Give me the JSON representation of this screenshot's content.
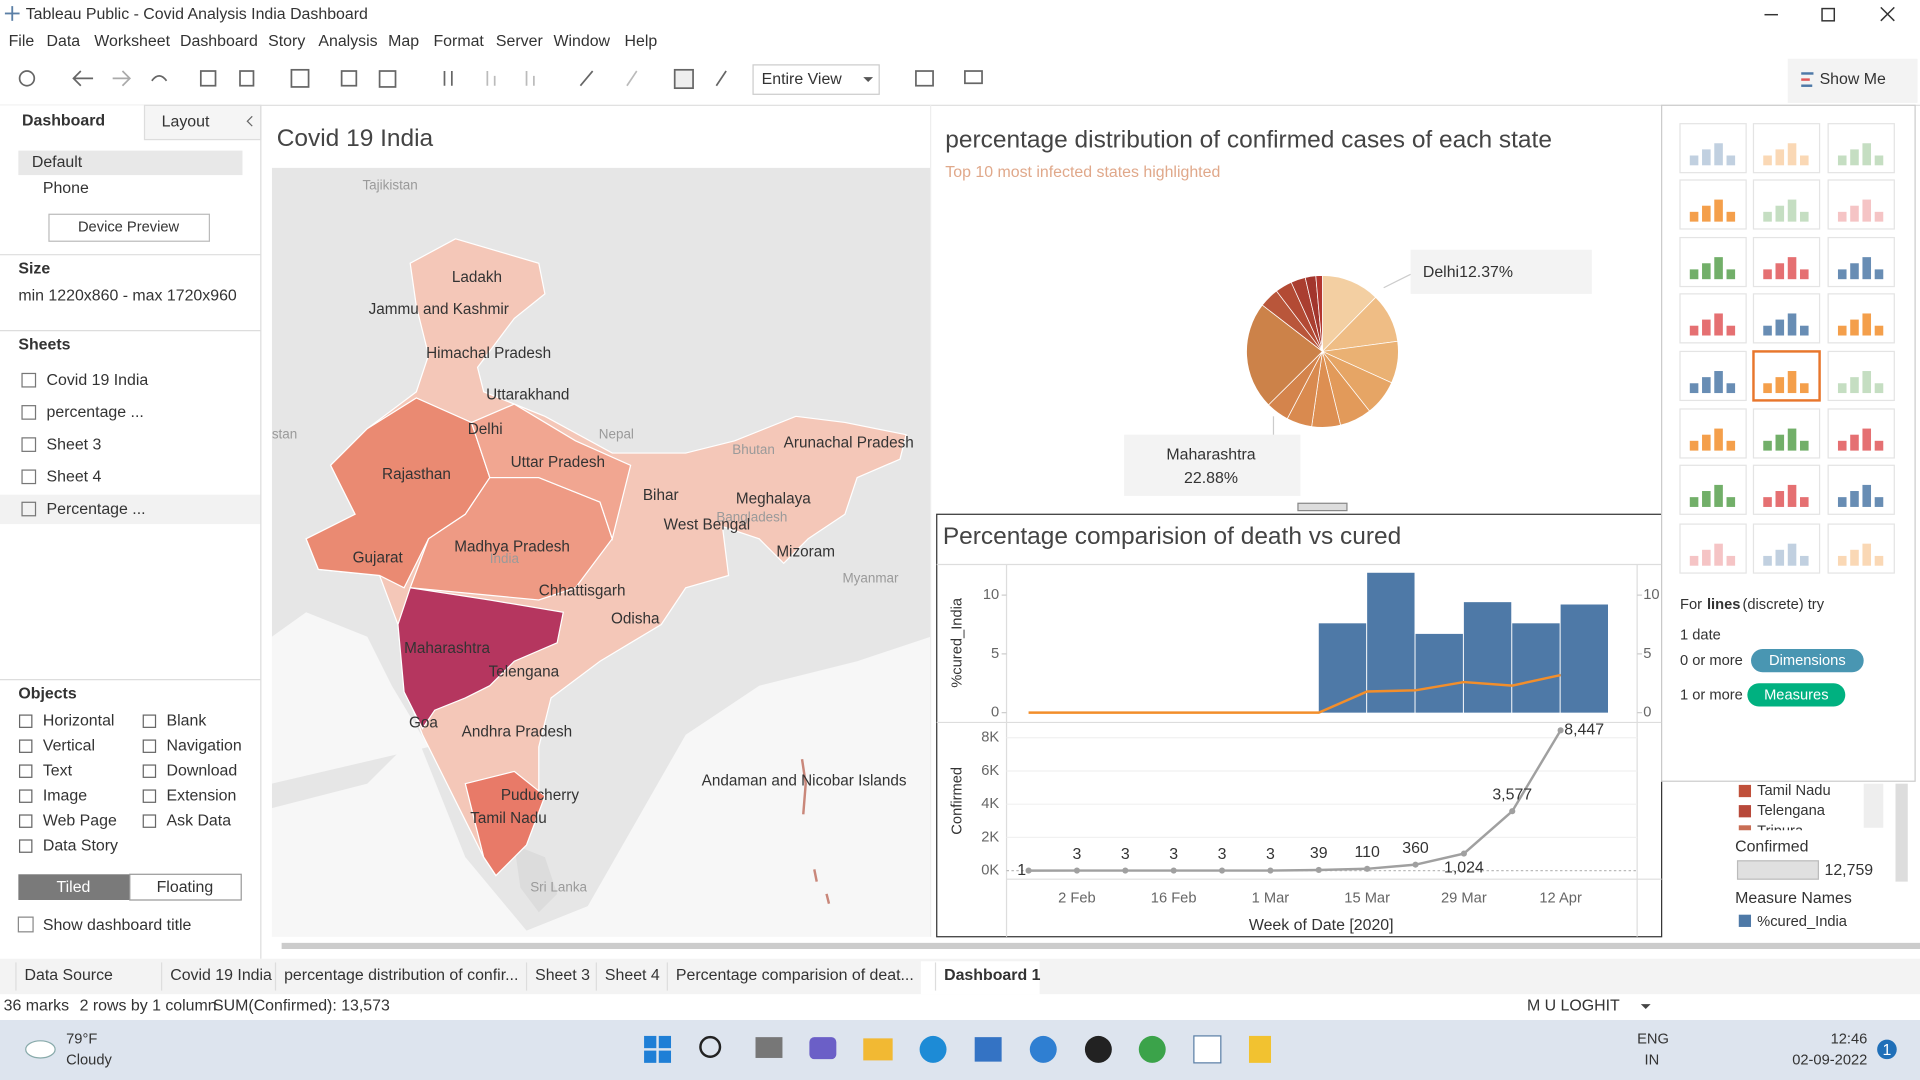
{
  "window": {
    "title": "Tableau Public - Covid Analysis India Dashboard"
  },
  "menu": [
    "File",
    "Data",
    "Worksheet",
    "Dashboard",
    "Story",
    "Analysis",
    "Map",
    "Format",
    "Server",
    "Window",
    "Help"
  ],
  "toolbar": {
    "view": "Entire View",
    "show_me": "Show Me"
  },
  "left_panel": {
    "tabs": [
      "Dashboard",
      "Layout"
    ],
    "devices": [
      "Default",
      "Phone"
    ],
    "device_preview": "Device Preview",
    "size_heading": "Size",
    "size_value": "min 1220x860 - max 1720x960",
    "sheets_heading": "Sheets",
    "sheets": [
      "Covid 19 India",
      "percentage ...",
      "Sheet 3",
      "Sheet 4",
      "Percentage ..."
    ],
    "objects_heading": "Objects",
    "objects": [
      "Horizontal",
      "Blank",
      "Vertical",
      "Navigation",
      "Text",
      "Download",
      "Image",
      "Extension",
      "Web Page",
      "Ask Data",
      "Data Story"
    ],
    "layout_modes": [
      "Tiled",
      "Floating"
    ],
    "show_title": "Show dashboard title"
  },
  "map": {
    "title": "Covid 19 India",
    "labels": [
      "Tajikistan",
      "Ladakh",
      "Jammu and Kashmir",
      "Himachal Pradesh",
      "Uttarakhand",
      "Delhi",
      "Nepal",
      "Arunachal Pradesh",
      "Bhutan",
      "Rajasthan",
      "Uttar Pradesh",
      "Bihar",
      "Meghalaya",
      "Bangladesh",
      "West Bengal",
      "Gujarat",
      "Madhya Pradesh",
      "India",
      "Mizoram",
      "Myanmar",
      "Chhattisgarh",
      "Odisha",
      "Maharashtra",
      "Telengana",
      "Goa",
      "Andhra Pradesh",
      "Andaman and Nicobar Islands",
      "Puducherry",
      "Tamil Nadu",
      "Sri Lanka",
      "stan"
    ]
  },
  "chart_data": [
    {
      "type": "pie",
      "title": "percentage distribution of confirmed cases of each state",
      "subtitle": "Top 10 most infected states highlighted",
      "categories": [
        "Delhi",
        null,
        null,
        null,
        null,
        null,
        null,
        null,
        "Maharashtra",
        null,
        null,
        null,
        null,
        null
      ],
      "values": [
        12.37,
        10.5,
        8.9,
        7.6,
        6.8,
        6.1,
        5.4,
        4.9,
        22.88,
        4.2,
        3.6,
        3.1,
        2.25,
        1.4
      ],
      "value_labels": [
        "12.37%",
        null,
        null,
        null,
        null,
        null,
        null,
        null,
        "22.88%",
        null,
        null,
        null,
        null,
        null
      ],
      "colors": [
        "#f3cfa2",
        "#efbd85",
        "#eab173",
        "#e6a565",
        "#e29a5a",
        "#dd8f52",
        "#d98a4f",
        "#d4844c",
        "#cc8249",
        "#b9563a",
        "#b34a34",
        "#aa3e30",
        "#a2352d",
        "#b3362f"
      ]
    },
    {
      "type": "bar",
      "title": "Percentage comparision of death vs cured",
      "y_label": "%cured_India",
      "categories": [
        null,
        "2 Feb",
        null,
        "16 Feb",
        null,
        "1 Mar",
        null,
        "15 Mar",
        null,
        "29 Mar",
        null,
        "12 Apr"
      ],
      "series": [
        {
          "name": "%cured_India",
          "type": "bar",
          "color": "#4e79a7",
          "values": [
            null,
            null,
            null,
            null,
            null,
            null,
            7.6,
            11.9,
            6.7,
            9.4,
            7.6,
            9.2
          ]
        },
        {
          "type": "line",
          "axis": "y2",
          "color": "#f28e2b",
          "values": [
            0,
            0,
            0,
            0,
            0,
            0,
            0,
            1.8,
            1.9,
            2.6,
            2.3,
            3.2
          ]
        }
      ],
      "ylim": [
        0,
        12.5
      ],
      "yticks": [
        0,
        5,
        10
      ],
      "y2lim": [
        0,
        12.5
      ],
      "y2ticks": [
        0,
        5,
        10
      ]
    },
    {
      "type": "line",
      "y_label": "Confirmed",
      "x_label": "Week of Date [2020]",
      "categories": [
        null,
        "2 Feb",
        null,
        "16 Feb",
        null,
        "1 Mar",
        null,
        "15 Mar",
        null,
        "29 Mar",
        null,
        "12 Apr"
      ],
      "values": [
        1,
        3,
        3,
        3,
        3,
        3,
        39,
        110,
        360,
        1024,
        3577,
        8447
      ],
      "value_labels": [
        null,
        null,
        null,
        null,
        null,
        null,
        null,
        null,
        null,
        "1,024",
        "3,577",
        "8,447"
      ],
      "color": "#a0a0a0",
      "ylim": [
        0,
        8700
      ],
      "yticks": [
        {
          "value": 0,
          "label": "0K"
        },
        {
          "value": 2000,
          "label": "2K"
        },
        {
          "value": 4000,
          "label": "4K"
        },
        {
          "value": 6000,
          "label": "6K"
        },
        {
          "value": 8000,
          "label": "8K"
        }
      ],
      "grid": true
    }
  ],
  "legend": {
    "states": [
      {
        "name": "Tamil Nadu",
        "color": "#c0503a"
      },
      {
        "name": "Telengana",
        "color": "#b8493a"
      },
      {
        "name": "Tripura",
        "color": "#c86e55"
      }
    ],
    "confirmed_title": "Confirmed",
    "confirmed_max": "12,759",
    "measure_title": "Measure Names"
  },
  "show_me": {
    "hint_prefix": "For",
    "hint_bold": "lines",
    "hint_suffix": "(discrete) try",
    "requirements": [
      {
        "count": "1 date"
      },
      {
        "count": "0 or more",
        "kind": "Dimensions"
      },
      {
        "count": "1 or more",
        "kind": "Measures"
      }
    ]
  },
  "sheet_tabs": [
    "Data Source",
    "Covid 19 India",
    "percentage distribution of confir...",
    "Sheet 3",
    "Sheet 4",
    "Percentage comparision of deat...",
    "Dashboard 1"
  ],
  "status": {
    "items": [
      "36 marks",
      "2 rows by 1 column",
      "SUM(Confirmed): 13,573"
    ],
    "user": "M U LOGHIT"
  },
  "taskbar": {
    "temperature": "79°F",
    "weather": "Cloudy",
    "language": [
      "ENG",
      "IN"
    ],
    "time": "12:46",
    "date": "02-09-2022",
    "notifications": "1"
  }
}
